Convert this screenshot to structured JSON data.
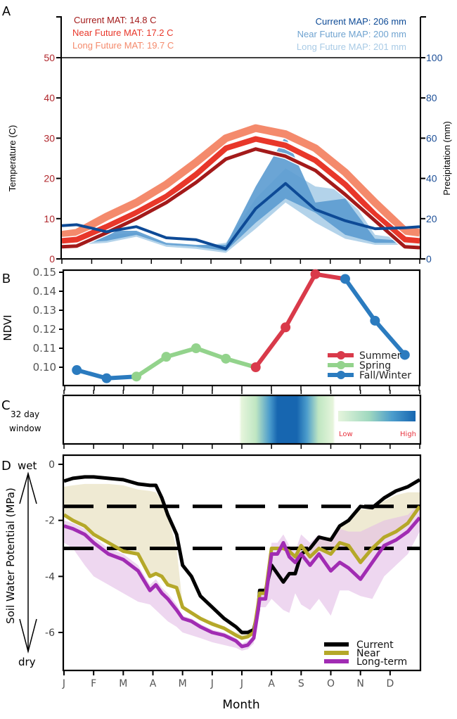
{
  "figure": {
    "months": [
      "J",
      "F",
      "M",
      "A",
      "M",
      "J",
      "J",
      "A",
      "S",
      "O",
      "N",
      "D"
    ],
    "xlabel": "Month"
  },
  "chart_data": [
    {
      "panel": "A",
      "type": "line",
      "panel_label": "A",
      "x": [
        "Jan",
        "Feb",
        "Mar",
        "Apr",
        "May",
        "Jun",
        "Jul",
        "Aug",
        "Sep",
        "Oct",
        "Nov",
        "Dec"
      ],
      "ylabel_left": "Temperature (C)",
      "ylabel_right": "Precipitation (mm)",
      "ylim_left": [
        0,
        50
      ],
      "ylim_right": [
        0,
        100
      ],
      "yticks_left": [
        "0",
        "10",
        "20",
        "30",
        "40",
        "50"
      ],
      "yticks_right": [
        "0",
        "20",
        "40",
        "60",
        "80",
        "100"
      ],
      "annotations_left": [
        {
          "text": "Current MAT: 14.8 C",
          "color": "#a31a1a"
        },
        {
          "text": "Near Future MAT: 17.2 C",
          "color": "#e8372a"
        },
        {
          "text": "Long Future MAT: 19.7 C",
          "color": "#f48a6c"
        }
      ],
      "annotations_right": [
        {
          "text": "Current MAP: 206 mm",
          "color": "#0d4a96"
        },
        {
          "text": "Near Future MAP: 200 mm",
          "color": "#6fa3d0"
        },
        {
          "text": "Long Future MAP: 201 mm",
          "color": "#a9cbe6"
        }
      ],
      "temperature_series": [
        {
          "name": "Current",
          "color": "#a31a1a",
          "values": [
            3.0,
            3.2,
            6.5,
            10.0,
            14.0,
            19.0,
            24.8,
            27.3,
            25.5,
            22.0,
            16.0,
            9.5,
            3.0,
            2.8
          ]
        },
        {
          "name": "Near Future",
          "color": "#e8372a",
          "values": [
            4.5,
            4.8,
            8.0,
            11.5,
            15.5,
            21.0,
            27.5,
            29.8,
            28.2,
            24.5,
            18.5,
            11.0,
            4.8,
            4.5
          ]
        },
        {
          "name": "Long Future",
          "color": "#f48a6c",
          "values": [
            6.0,
            6.5,
            10.5,
            14.0,
            18.5,
            24.0,
            30.0,
            32.5,
            31.0,
            27.5,
            21.5,
            14.0,
            7.0,
            6.5
          ]
        }
      ],
      "temperature_x": [
        0,
        0.5,
        1.5,
        2.5,
        3.5,
        4.5,
        5.5,
        6.5,
        7.5,
        8.5,
        9.5,
        10.5,
        11.5,
        12
      ],
      "precipitation_x": [
        0,
        0.5,
        1.5,
        2.5,
        3.5,
        4.5,
        5.5,
        6.5,
        7.5,
        8.5,
        9.5,
        10.5,
        11.5,
        12
      ],
      "precipitation_series": [
        {
          "name": "Current",
          "color": "#0d4a96",
          "values": [
            16.5,
            17.0,
            13.5,
            16.0,
            10.5,
            9.5,
            5.0,
            25.0,
            37.5,
            24.5,
            19.0,
            15.0,
            15.5,
            16.0
          ]
        },
        {
          "name": "Near Future",
          "color": "#5b9bd0",
          "lower": [
            8,
            8,
            9,
            12,
            7,
            6,
            4,
            18,
            30,
            23,
            12,
            8,
            8,
            8
          ],
          "upper": [
            12,
            12,
            14,
            14,
            8,
            7,
            7,
            36,
            61,
            28,
            30,
            10,
            9,
            9
          ]
        },
        {
          "name": "Long Future",
          "color": "#a6cbe6",
          "lower": [
            7,
            7,
            8,
            11,
            6,
            5,
            3,
            15,
            28,
            18,
            10,
            7,
            7,
            7
          ],
          "upper": [
            11,
            11,
            12,
            13,
            7,
            6,
            8,
            30,
            45,
            36,
            34,
            12,
            10,
            10
          ]
        }
      ]
    },
    {
      "panel": "B",
      "type": "line",
      "panel_label": "B",
      "ylabel": "NDVI",
      "ylim": [
        0.0915,
        0.151
      ],
      "yticks": [
        "0.10",
        "0.11",
        "0.12",
        "0.13",
        "0.14",
        "0.15"
      ],
      "x": [
        0.5,
        1.5,
        2.5,
        3.5,
        4.5,
        5.5,
        6.5,
        7.5,
        8.5,
        9.5,
        10.5,
        11.5
      ],
      "values": [
        0.0985,
        0.0942,
        0.0951,
        0.1055,
        0.11,
        0.1045,
        0.1,
        0.121,
        0.149,
        0.1465,
        0.1245,
        0.1065
      ],
      "segments": [
        {
          "name": "Fall/Winter",
          "color": "#2b7bbf",
          "indices": [
            0,
            1,
            2
          ]
        },
        {
          "name": "Spring",
          "color": "#93d38c",
          "indices": [
            2,
            3,
            4,
            5,
            6
          ]
        },
        {
          "name": "Summer",
          "color": "#d93a4a",
          "indices": [
            6,
            7,
            8
          ]
        },
        {
          "name": "Summer",
          "color": "#d93a4a",
          "indices": [
            8,
            9
          ]
        },
        {
          "name": "Fall/Winter",
          "color": "#2b7bbf",
          "indices": [
            9,
            10,
            11
          ]
        }
      ],
      "point_colors": [
        "#2b7bbf",
        "#2b7bbf",
        "#93d38c",
        "#93d38c",
        "#93d38c",
        "#93d38c",
        "#d93a4a",
        "#d93a4a",
        "#d93a4a",
        "#2b7bbf",
        "#2b7bbf",
        "#2b7bbf"
      ],
      "legend": [
        {
          "label": "Summer",
          "color": "#d93a4a"
        },
        {
          "label": "Spring",
          "color": "#93d38c"
        },
        {
          "label": "Fall/Winter",
          "color": "#2b7bbf"
        }
      ],
      "legend_position": "bottom-right"
    },
    {
      "panel": "C",
      "type": "heatmap",
      "panel_label": "C",
      "row_label": [
        "32 day",
        "window"
      ],
      "x_range_months": [
        6.0,
        9.0
      ],
      "peak_range_months": [
        7.0,
        8.0
      ],
      "colorbar": {
        "low_label": "Low",
        "high_label": "High",
        "low_color": "#e6f5dc",
        "mid_color": "#7cc7c0",
        "high_color": "#1766b0",
        "label_color": "#e8343f"
      }
    },
    {
      "panel": "D",
      "type": "line",
      "panel_label": "D",
      "ylabel": "Soil Water Potential (MPa)",
      "wet_label": "wet",
      "dry_label": "dry",
      "ylim": [
        -7.0,
        0.3
      ],
      "yticks": [
        "0",
        "-2",
        "-4",
        "-6"
      ],
      "thresholds": [
        -1.5,
        -3.0
      ],
      "x": [
        0,
        0.3,
        0.7,
        1.0,
        1.5,
        2.0,
        2.5,
        2.9,
        3.1,
        3.3,
        3.5,
        3.8,
        4.0,
        4.3,
        4.6,
        5.0,
        5.4,
        5.8,
        6.0,
        6.2,
        6.4,
        6.55,
        6.6,
        6.8,
        7.0,
        7.2,
        7.4,
        7.6,
        7.8,
        8.0,
        8.3,
        8.6,
        9.0,
        9.3,
        9.6,
        10.0,
        10.4,
        10.8,
        11.2,
        11.6,
        12.0
      ],
      "series": [
        {
          "name": "Current",
          "color": "#000000",
          "values": [
            -0.6,
            -0.5,
            -0.45,
            -0.45,
            -0.5,
            -0.55,
            -0.7,
            -0.75,
            -0.75,
            -1.2,
            -1.8,
            -2.5,
            -3.6,
            -4.0,
            -4.7,
            -5.1,
            -5.5,
            -5.8,
            -6.0,
            -6.0,
            -5.9,
            -5.2,
            -4.5,
            -4.5,
            -3.6,
            -3.9,
            -4.2,
            -3.9,
            -3.9,
            -3.2,
            -3.0,
            -2.6,
            -2.7,
            -2.2,
            -2.0,
            -1.5,
            -1.55,
            -1.2,
            -0.95,
            -0.8,
            -0.55
          ]
        },
        {
          "name": "Near",
          "color": "#b5a829",
          "values": [
            -1.8,
            -2.0,
            -2.2,
            -2.5,
            -2.8,
            -3.1,
            -3.2,
            -4.0,
            -3.9,
            -4.0,
            -4.3,
            -4.4,
            -5.1,
            -5.3,
            -5.5,
            -5.7,
            -5.85,
            -6.1,
            -6.2,
            -6.15,
            -6.0,
            -5.0,
            -4.6,
            -4.6,
            -3.0,
            -3.0,
            -3.0,
            -3.1,
            -3.3,
            -2.9,
            -3.3,
            -3.0,
            -3.2,
            -2.8,
            -2.9,
            -3.5,
            -3.0,
            -2.6,
            -2.4,
            -2.1,
            -1.5
          ]
        },
        {
          "name": "Long-term",
          "color": "#a12cb3",
          "values": [
            -2.2,
            -2.3,
            -2.5,
            -2.8,
            -3.2,
            -3.4,
            -3.8,
            -4.5,
            -4.3,
            -4.6,
            -4.8,
            -5.2,
            -5.5,
            -5.6,
            -5.8,
            -6.0,
            -6.1,
            -6.3,
            -6.5,
            -6.45,
            -6.2,
            -5.2,
            -4.8,
            -4.8,
            -3.2,
            -3.2,
            -2.8,
            -3.3,
            -3.5,
            -3.2,
            -3.6,
            -3.2,
            -3.8,
            -3.5,
            -3.7,
            -4.1,
            -3.5,
            -2.9,
            -2.7,
            -2.4,
            -1.9
          ]
        }
      ],
      "bands": [
        {
          "name": "Near range",
          "color": "#e9e3c4",
          "upper": [
            -0.8,
            -0.75,
            -0.7,
            -0.7,
            -0.7,
            -0.75,
            -0.9,
            -0.95,
            -1.0,
            -1.3,
            -1.8,
            -3.0,
            -5.0,
            -5.3,
            -5.5,
            -5.6,
            -5.8,
            -6.0,
            -6.0,
            -6.0,
            -5.9,
            -5.0,
            -4.6,
            -4.6,
            -3.0,
            -3.0,
            -3.0,
            -3.1,
            -3.2,
            -2.9,
            -3.0,
            -2.6,
            -2.6,
            -2.2,
            -2.0,
            -1.6,
            -1.6,
            -1.3,
            -1.1,
            -1.0,
            -1.0
          ],
          "lower_series": "Near"
        },
        {
          "name": "Long-term range",
          "color": "#e3bde6",
          "upper": [
            -2.0,
            -2.1,
            -2.3,
            -2.6,
            -3.0,
            -3.2,
            -3.6,
            -4.3,
            -4.1,
            -4.4,
            -4.6,
            -5.0,
            -5.4,
            -5.5,
            -5.7,
            -5.9,
            -6.0,
            -6.2,
            -6.4,
            -6.3,
            -6.1,
            -5.1,
            -4.6,
            -4.6,
            -2.8,
            -2.8,
            -2.5,
            -2.9,
            -3.1,
            -2.5,
            -2.8,
            -2.5,
            -2.8,
            -2.3,
            -2.4,
            -2.4,
            -2.2,
            -2.0,
            -1.9,
            -1.8,
            -1.4
          ],
          "lower": [
            -2.8,
            -3.0,
            -3.6,
            -4.0,
            -4.3,
            -4.6,
            -4.9,
            -5.0,
            -5.2,
            -5.4,
            -5.6,
            -5.8,
            -6.0,
            -6.1,
            -6.2,
            -6.35,
            -6.45,
            -6.55,
            -6.65,
            -6.6,
            -6.4,
            -5.5,
            -5.1,
            -5.1,
            -4.8,
            -5.0,
            -5.2,
            -5.3,
            -4.6,
            -5.0,
            -5.2,
            -4.8,
            -5.4,
            -4.5,
            -4.5,
            -4.7,
            -4.8,
            -4.0,
            -3.6,
            -3.2,
            -2.4
          ]
        }
      ],
      "legend": [
        {
          "label": "Current",
          "color": "#000000"
        },
        {
          "label": "Near",
          "color": "#b5a829"
        },
        {
          "label": "Long-term",
          "color": "#a12cb3"
        }
      ],
      "legend_position": "bottom-right"
    }
  ]
}
